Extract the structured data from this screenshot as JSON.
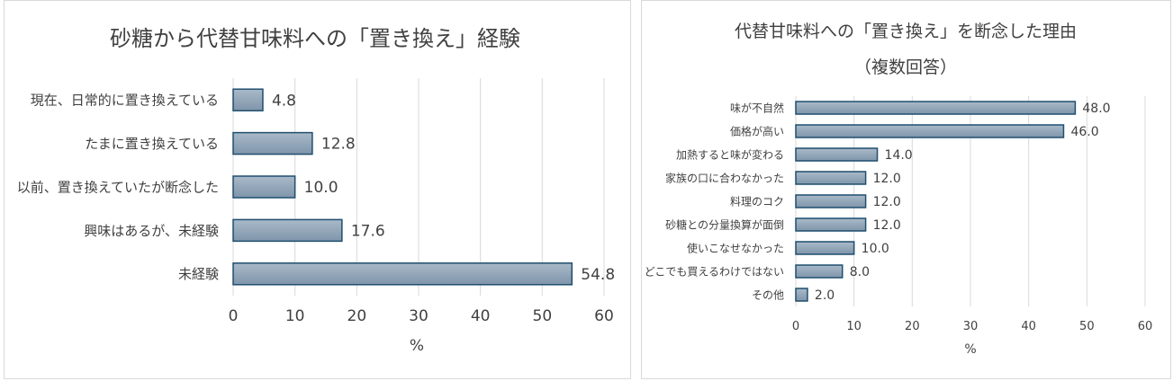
{
  "chart_data": [
    {
      "type": "bar",
      "orientation": "horizontal",
      "title": "砂糖から代替甘味料への「置き換え」経験",
      "xlabel": "%",
      "xlim": [
        0,
        60
      ],
      "xticks": [
        0,
        10,
        20,
        30,
        40,
        50,
        60
      ],
      "grid": true,
      "categories": [
        "現在、日常的に置き換えている",
        "たまに置き換えている",
        "以前、置き換えていたが断念した",
        "興味はあるが、未経験",
        "未経験"
      ],
      "values": [
        4.8,
        12.8,
        10.0,
        17.6,
        54.8
      ],
      "value_labels": [
        "4.8",
        "12.8",
        "10.0",
        "17.6",
        "54.8"
      ],
      "colors": {
        "bar_fill": "#8fa3b6",
        "bar_stroke": "#1f4e6e",
        "grid": "#d9d9d9"
      }
    },
    {
      "type": "bar",
      "orientation": "horizontal",
      "title": "代替甘味料への「置き換え」を断念した理由",
      "subtitle": "（複数回答）",
      "xlabel": "%",
      "xlim": [
        0,
        60
      ],
      "xticks": [
        0,
        10,
        20,
        30,
        40,
        50,
        60
      ],
      "grid": true,
      "categories": [
        "味が不自然",
        "価格が高い",
        "加熱すると味が変わる",
        "家族の口に合わなかった",
        "料理のコク",
        "砂糖との分量換算が面倒",
        "使いこなせなかった",
        "どこでも買えるわけではない",
        "その他"
      ],
      "values": [
        48.0,
        46.0,
        14.0,
        12.0,
        12.0,
        12.0,
        10.0,
        8.0,
        2.0
      ],
      "value_labels": [
        "48.0",
        "46.0",
        "14.0",
        "12.0",
        "12.0",
        "12.0",
        "10.0",
        "8.0",
        "2.0"
      ],
      "colors": {
        "bar_fill": "#8fa3b6",
        "bar_stroke": "#1f4e6e",
        "grid": "#d9d9d9"
      }
    }
  ]
}
